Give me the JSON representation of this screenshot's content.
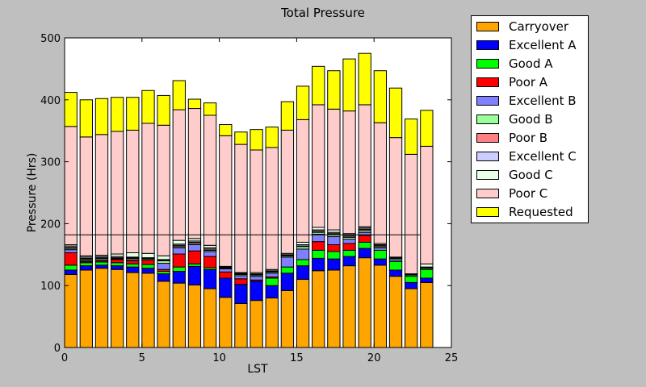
{
  "chart_data": {
    "type": "bar",
    "stacked": true,
    "title": "Total Pressure",
    "xlabel": "LST",
    "ylabel": "Pressure (Hrs)",
    "xlim": [
      0,
      25
    ],
    "ylim": [
      0,
      500
    ],
    "xticks": [
      0,
      5,
      10,
      15,
      20,
      25
    ],
    "yticks": [
      0,
      100,
      200,
      300,
      400,
      500
    ],
    "grid": false,
    "legend_position": "outside-right",
    "bar_width": 0.8,
    "reference_line": {
      "y": 182,
      "x": [
        0,
        23
      ]
    },
    "x": [
      0,
      1,
      2,
      3,
      4,
      5,
      6,
      7,
      8,
      9,
      10,
      11,
      12,
      13,
      14,
      15,
      16,
      17,
      18,
      19,
      20,
      21,
      22,
      23
    ],
    "series": [
      {
        "name": "Carryover",
        "color": "#ffa500",
        "values": [
          118,
          125,
          128,
          126,
          121,
          120,
          107,
          104,
          101,
          95,
          81,
          71,
          76,
          80,
          92,
          110,
          124,
          125,
          132,
          145,
          133,
          115,
          95,
          105
        ]
      },
      {
        "name": "Excellent A",
        "color": "#0000ff",
        "values": [
          7,
          7,
          5,
          6,
          9,
          8,
          12,
          19,
          30,
          31,
          31,
          31,
          31,
          20,
          28,
          22,
          20,
          18,
          15,
          15,
          10,
          10,
          10,
          7
        ]
      },
      {
        "name": "Good A",
        "color": "#00ff00",
        "values": [
          8,
          5,
          5,
          5,
          5,
          6,
          4,
          7,
          4,
          3,
          0,
          0,
          0,
          12,
          10,
          10,
          13,
          12,
          10,
          10,
          14,
          14,
          10,
          14
        ]
      },
      {
        "name": "Poor A",
        "color": "#ff0000",
        "values": [
          20,
          2,
          2,
          5,
          5,
          7,
          3,
          21,
          21,
          18,
          10,
          9,
          2,
          2,
          0,
          0,
          14,
          11,
          11,
          11,
          0,
          0,
          0,
          0
        ]
      },
      {
        "name": "Excellent B",
        "color": "#8080ff",
        "values": [
          5,
          2,
          2,
          1,
          2,
          0,
          10,
          10,
          10,
          8,
          5,
          5,
          6,
          6,
          16,
          17,
          12,
          13,
          7,
          5,
          4,
          3,
          0,
          0
        ]
      },
      {
        "name": "Good B",
        "color": "#99ff99",
        "values": [
          2,
          2,
          2,
          1,
          2,
          2,
          4,
          2,
          2,
          2,
          1,
          2,
          2,
          2,
          2,
          4,
          3,
          3,
          3,
          3,
          2,
          2,
          2,
          2
        ]
      },
      {
        "name": "Poor B",
        "color": "#ff8080",
        "values": [
          2,
          1,
          1,
          1,
          1,
          1,
          1,
          2,
          2,
          2,
          1,
          1,
          1,
          1,
          1,
          1,
          2,
          2,
          2,
          2,
          2,
          1,
          1,
          1
        ]
      },
      {
        "name": "Excellent C",
        "color": "#ccccff",
        "values": [
          2,
          2,
          2,
          2,
          1,
          1,
          1,
          2,
          2,
          2,
          1,
          1,
          1,
          1,
          1,
          2,
          2,
          2,
          2,
          2,
          1,
          1,
          1,
          1
        ]
      },
      {
        "name": "Good C",
        "color": "#e6ffe6",
        "values": [
          2,
          2,
          2,
          4,
          7,
          7,
          6,
          6,
          4,
          4,
          1,
          1,
          2,
          2,
          2,
          4,
          4,
          4,
          2,
          2,
          2,
          0,
          0,
          5
        ]
      },
      {
        "name": "Poor C",
        "color": "#ffcccc",
        "values": [
          191,
          192,
          195,
          198,
          198,
          210,
          211,
          211,
          210,
          210,
          211,
          207,
          198,
          197,
          199,
          198,
          198,
          195,
          198,
          197,
          195,
          193,
          193,
          190
        ]
      },
      {
        "name": "Requested",
        "color": "#ffff00",
        "values": [
          55,
          60,
          58,
          55,
          53,
          53,
          48,
          47,
          15,
          20,
          18,
          20,
          33,
          33,
          46,
          54,
          62,
          62,
          84,
          83,
          84,
          80,
          57,
          58
        ]
      }
    ]
  }
}
